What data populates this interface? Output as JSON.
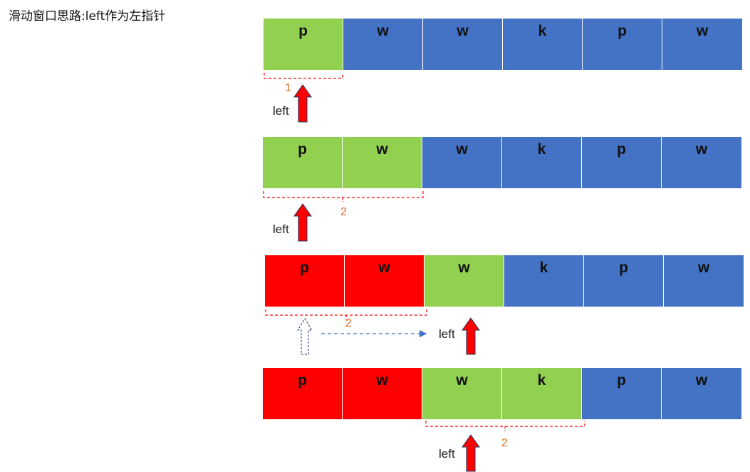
{
  "title": "滑动窗口思路:left作为左指针",
  "colors": {
    "window": "#92d050",
    "default": "#4472c4",
    "discarded": "#ff0000",
    "arrow": "#ff0000",
    "bracket": "#ff0000",
    "count": "#e06a1a"
  },
  "rows": [
    {
      "cells": [
        {
          "char": "p",
          "state": "window"
        },
        {
          "char": "w",
          "state": "default"
        },
        {
          "char": "w",
          "state": "default"
        },
        {
          "char": "k",
          "state": "default"
        },
        {
          "char": "p",
          "state": "default"
        },
        {
          "char": "w",
          "state": "default"
        }
      ],
      "pointer_label": "left",
      "window_length": "1"
    },
    {
      "cells": [
        {
          "char": "p",
          "state": "window"
        },
        {
          "char": "w",
          "state": "window"
        },
        {
          "char": "w",
          "state": "default"
        },
        {
          "char": "k",
          "state": "default"
        },
        {
          "char": "p",
          "state": "default"
        },
        {
          "char": "w",
          "state": "default"
        }
      ],
      "pointer_label": "left",
      "window_length": "2"
    },
    {
      "cells": [
        {
          "char": "p",
          "state": "discarded"
        },
        {
          "char": "w",
          "state": "discarded"
        },
        {
          "char": "w",
          "state": "window"
        },
        {
          "char": "k",
          "state": "default"
        },
        {
          "char": "p",
          "state": "default"
        },
        {
          "char": "w",
          "state": "default"
        }
      ],
      "pointer_label": "left",
      "window_length": "2"
    },
    {
      "cells": [
        {
          "char": "p",
          "state": "discarded"
        },
        {
          "char": "w",
          "state": "discarded"
        },
        {
          "char": "w",
          "state": "window"
        },
        {
          "char": "k",
          "state": "window"
        },
        {
          "char": "p",
          "state": "default"
        },
        {
          "char": "w",
          "state": "default"
        }
      ],
      "pointer_label": "left",
      "window_length": "2"
    }
  ]
}
